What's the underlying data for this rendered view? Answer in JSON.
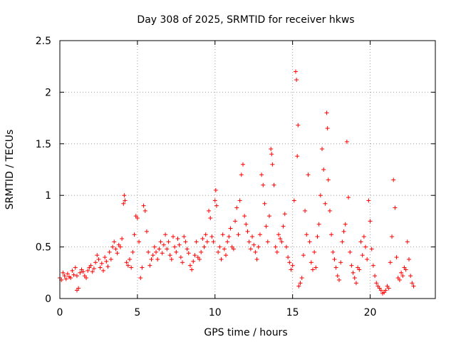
{
  "chart_data": {
    "type": "scatter",
    "title": "Day 308 of 2025, SRMTID for receiver hkws",
    "xlabel": "GPS time / hours",
    "ylabel": "SRMTID / TECUs",
    "xlim": [
      0,
      24.2
    ],
    "ylim": [
      0,
      2.5
    ],
    "xticks": [
      "0",
      "5",
      "10",
      "15",
      "20"
    ],
    "xtick_values": [
      0,
      5,
      10,
      15,
      20
    ],
    "yticks": [
      "0",
      "0.5",
      "1",
      "1.5",
      "2",
      "2.5"
    ],
    "ytick_values": [
      0,
      0.5,
      1,
      1.5,
      2,
      2.5
    ],
    "grid": true,
    "marker": "+",
    "color": "#ff0000",
    "series": [
      {
        "name": "SRMTID",
        "points": [
          [
            0.0,
            0.2
          ],
          [
            0.1,
            0.18
          ],
          [
            0.2,
            0.25
          ],
          [
            0.3,
            0.22
          ],
          [
            0.4,
            0.19
          ],
          [
            0.5,
            0.24
          ],
          [
            0.6,
            0.21
          ],
          [
            0.7,
            0.2
          ],
          [
            0.8,
            0.27
          ],
          [
            0.9,
            0.23
          ],
          [
            1.0,
            0.3
          ],
          [
            1.1,
            0.22
          ],
          [
            1.1,
            0.08
          ],
          [
            1.2,
            0.1
          ],
          [
            1.3,
            0.25
          ],
          [
            1.4,
            0.28
          ],
          [
            1.5,
            0.26
          ],
          [
            1.6,
            0.22
          ],
          [
            1.7,
            0.2
          ],
          [
            1.8,
            0.27
          ],
          [
            1.9,
            0.3
          ],
          [
            2.0,
            0.32
          ],
          [
            2.1,
            0.26
          ],
          [
            2.2,
            0.29
          ],
          [
            2.3,
            0.35
          ],
          [
            2.4,
            0.42
          ],
          [
            2.5,
            0.38
          ],
          [
            2.6,
            0.3
          ],
          [
            2.7,
            0.34
          ],
          [
            2.8,
            0.27
          ],
          [
            2.9,
            0.4
          ],
          [
            3.0,
            0.36
          ],
          [
            3.1,
            0.31
          ],
          [
            3.2,
            0.45
          ],
          [
            3.3,
            0.38
          ],
          [
            3.4,
            0.5
          ],
          [
            3.5,
            0.55
          ],
          [
            3.6,
            0.48
          ],
          [
            3.7,
            0.44
          ],
          [
            3.8,
            0.52
          ],
          [
            3.9,
            0.5
          ],
          [
            4.0,
            0.58
          ],
          [
            4.1,
            0.92
          ],
          [
            4.15,
            1.0
          ],
          [
            4.2,
            0.95
          ],
          [
            4.3,
            0.35
          ],
          [
            4.4,
            0.32
          ],
          [
            4.5,
            0.38
          ],
          [
            4.6,
            0.3
          ],
          [
            4.7,
            0.45
          ],
          [
            4.8,
            0.62
          ],
          [
            4.9,
            0.8
          ],
          [
            5.0,
            0.78
          ],
          [
            5.1,
            0.55
          ],
          [
            5.2,
            0.2
          ],
          [
            5.3,
            0.3
          ],
          [
            5.4,
            0.9
          ],
          [
            5.5,
            0.85
          ],
          [
            5.6,
            0.65
          ],
          [
            5.7,
            0.45
          ],
          [
            5.8,
            0.32
          ],
          [
            5.9,
            0.38
          ],
          [
            6.0,
            0.42
          ],
          [
            6.1,
            0.5
          ],
          [
            6.2,
            0.45
          ],
          [
            6.3,
            0.38
          ],
          [
            6.4,
            0.48
          ],
          [
            6.5,
            0.55
          ],
          [
            6.6,
            0.44
          ],
          [
            6.7,
            0.52
          ],
          [
            6.8,
            0.62
          ],
          [
            6.9,
            0.48
          ],
          [
            7.0,
            0.55
          ],
          [
            7.1,
            0.42
          ],
          [
            7.2,
            0.38
          ],
          [
            7.3,
            0.6
          ],
          [
            7.4,
            0.5
          ],
          [
            7.5,
            0.45
          ],
          [
            7.6,
            0.58
          ],
          [
            7.7,
            0.52
          ],
          [
            7.8,
            0.4
          ],
          [
            7.9,
            0.35
          ],
          [
            8.0,
            0.6
          ],
          [
            8.1,
            0.55
          ],
          [
            8.2,
            0.48
          ],
          [
            8.3,
            0.44
          ],
          [
            8.4,
            0.32
          ],
          [
            8.5,
            0.28
          ],
          [
            8.6,
            0.36
          ],
          [
            8.7,
            0.42
          ],
          [
            8.8,
            0.55
          ],
          [
            8.9,
            0.4
          ],
          [
            9.0,
            0.38
          ],
          [
            9.1,
            0.45
          ],
          [
            9.2,
            0.58
          ],
          [
            9.3,
            0.5
          ],
          [
            9.4,
            0.62
          ],
          [
            9.5,
            0.55
          ],
          [
            9.6,
            0.85
          ],
          [
            9.7,
            0.78
          ],
          [
            9.8,
            0.6
          ],
          [
            9.9,
            0.55
          ],
          [
            10.0,
            0.95
          ],
          [
            10.05,
            1.05
          ],
          [
            10.1,
            0.9
          ],
          [
            10.2,
            0.45
          ],
          [
            10.3,
            0.5
          ],
          [
            10.4,
            0.38
          ],
          [
            10.5,
            0.62
          ],
          [
            10.6,
            0.48
          ],
          [
            10.7,
            0.42
          ],
          [
            10.8,
            0.55
          ],
          [
            10.9,
            0.6
          ],
          [
            11.0,
            0.68
          ],
          [
            11.1,
            0.5
          ],
          [
            11.2,
            0.48
          ],
          [
            11.3,
            0.75
          ],
          [
            11.4,
            0.88
          ],
          [
            11.5,
            0.62
          ],
          [
            11.6,
            0.95
          ],
          [
            11.7,
            1.2
          ],
          [
            11.8,
            1.3
          ],
          [
            11.9,
            0.8
          ],
          [
            12.0,
            0.72
          ],
          [
            12.1,
            0.65
          ],
          [
            12.2,
            0.55
          ],
          [
            12.3,
            0.48
          ],
          [
            12.4,
            0.6
          ],
          [
            12.5,
            0.52
          ],
          [
            12.6,
            0.45
          ],
          [
            12.7,
            0.38
          ],
          [
            12.8,
            0.5
          ],
          [
            12.9,
            0.62
          ],
          [
            13.0,
            1.2
          ],
          [
            13.1,
            1.1
          ],
          [
            13.2,
            0.92
          ],
          [
            13.3,
            0.7
          ],
          [
            13.4,
            0.55
          ],
          [
            13.5,
            0.8
          ],
          [
            13.6,
            1.45
          ],
          [
            13.65,
            1.4
          ],
          [
            13.7,
            1.3
          ],
          [
            13.8,
            1.1
          ],
          [
            13.9,
            0.5
          ],
          [
            14.0,
            0.45
          ],
          [
            14.1,
            0.62
          ],
          [
            14.2,
            0.58
          ],
          [
            14.3,
            0.55
          ],
          [
            14.4,
            0.7
          ],
          [
            14.5,
            0.82
          ],
          [
            14.6,
            0.5
          ],
          [
            14.7,
            0.4
          ],
          [
            14.8,
            0.35
          ],
          [
            14.9,
            0.28
          ],
          [
            15.0,
            0.32
          ],
          [
            15.1,
            0.95
          ],
          [
            15.2,
            2.2
          ],
          [
            15.25,
            2.12
          ],
          [
            15.3,
            1.38
          ],
          [
            15.35,
            1.68
          ],
          [
            15.4,
            0.12
          ],
          [
            15.5,
            0.15
          ],
          [
            15.6,
            0.2
          ],
          [
            15.7,
            0.42
          ],
          [
            15.8,
            0.85
          ],
          [
            15.9,
            0.62
          ],
          [
            16.0,
            1.2
          ],
          [
            16.1,
            0.55
          ],
          [
            16.2,
            0.35
          ],
          [
            16.3,
            0.28
          ],
          [
            16.4,
            0.45
          ],
          [
            16.5,
            0.3
          ],
          [
            16.6,
            0.6
          ],
          [
            16.7,
            0.72
          ],
          [
            16.8,
            1.0
          ],
          [
            16.9,
            1.45
          ],
          [
            17.0,
            1.25
          ],
          [
            17.1,
            0.92
          ],
          [
            17.2,
            1.8
          ],
          [
            17.25,
            1.65
          ],
          [
            17.3,
            1.15
          ],
          [
            17.4,
            0.85
          ],
          [
            17.5,
            0.62
          ],
          [
            17.6,
            0.45
          ],
          [
            17.7,
            0.38
          ],
          [
            17.8,
            0.3
          ],
          [
            17.9,
            0.22
          ],
          [
            18.0,
            0.18
          ],
          [
            18.1,
            0.35
          ],
          [
            18.2,
            0.55
          ],
          [
            18.3,
            0.65
          ],
          [
            18.4,
            0.72
          ],
          [
            18.5,
            1.52
          ],
          [
            18.6,
            0.98
          ],
          [
            18.7,
            0.45
          ],
          [
            18.8,
            0.32
          ],
          [
            18.9,
            0.25
          ],
          [
            19.0,
            0.2
          ],
          [
            19.1,
            0.15
          ],
          [
            19.2,
            0.3
          ],
          [
            19.3,
            0.28
          ],
          [
            19.4,
            0.55
          ],
          [
            19.5,
            0.42
          ],
          [
            19.6,
            0.6
          ],
          [
            19.7,
            0.5
          ],
          [
            19.8,
            0.38
          ],
          [
            19.9,
            0.95
          ],
          [
            20.0,
            0.75
          ],
          [
            20.1,
            0.48
          ],
          [
            20.2,
            0.32
          ],
          [
            20.3,
            0.22
          ],
          [
            20.4,
            0.15
          ],
          [
            20.5,
            0.12
          ],
          [
            20.6,
            0.1
          ],
          [
            20.7,
            0.08
          ],
          [
            20.8,
            0.05
          ],
          [
            20.9,
            0.06
          ],
          [
            21.0,
            0.08
          ],
          [
            21.1,
            0.12
          ],
          [
            21.2,
            0.1
          ],
          [
            21.3,
            0.35
          ],
          [
            21.4,
            0.6
          ],
          [
            21.5,
            1.15
          ],
          [
            21.6,
            0.88
          ],
          [
            21.7,
            0.4
          ],
          [
            21.8,
            0.2
          ],
          [
            21.9,
            0.18
          ],
          [
            22.0,
            0.25
          ],
          [
            22.1,
            0.22
          ],
          [
            22.2,
            0.3
          ],
          [
            22.3,
            0.28
          ],
          [
            22.4,
            0.55
          ],
          [
            22.5,
            0.38
          ],
          [
            22.6,
            0.22
          ],
          [
            22.7,
            0.15
          ],
          [
            22.8,
            0.12
          ]
        ]
      }
    ]
  }
}
